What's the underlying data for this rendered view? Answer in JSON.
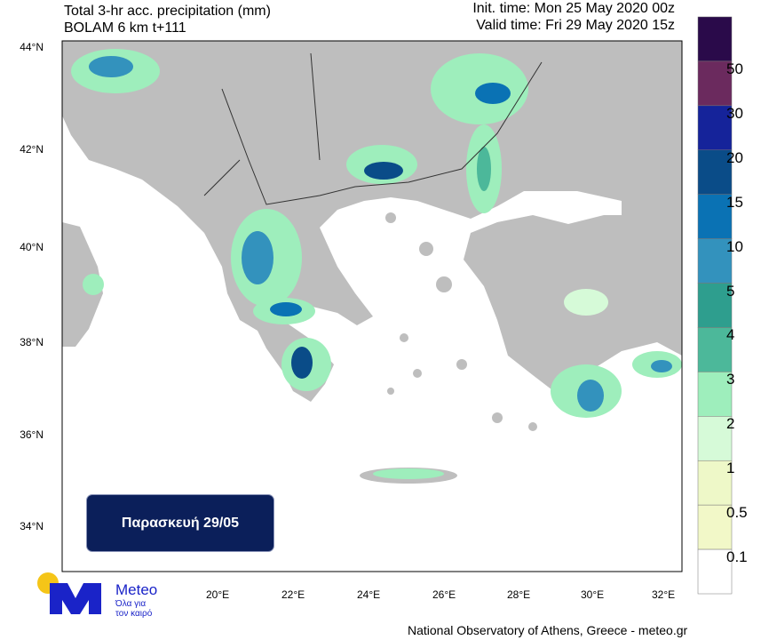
{
  "header": {
    "title_line1": "Total 3-hr acc. precipitation (mm)",
    "title_line2": "BOLAM 6 km t+111",
    "init_time": "Init. time: Mon 25 May 2020 00z",
    "valid_time": "Valid time: Fri 29 May 2020 15z"
  },
  "map": {
    "lat_ticks": [
      "44°N",
      "42°N",
      "40°N",
      "38°N",
      "36°N",
      "34°N"
    ],
    "lon_ticks": [
      "20°E",
      "22°E",
      "24°E",
      "26°E",
      "28°E",
      "30°E",
      "32°E"
    ],
    "land_color": "#bebebe",
    "sea_color": "#ffffff"
  },
  "day_label": "Παρασκευή 29/05",
  "colorbar": {
    "labels": [
      "50",
      "30",
      "20",
      "15",
      "10",
      "5",
      "4",
      "3",
      "2",
      "1",
      "0.5",
      "0.1"
    ],
    "colors": [
      "#2a0a4a",
      "#6b2a5e",
      "#15239a",
      "#0a4c88",
      "#0a72b4",
      "#3392bd",
      "#2e9e8e",
      "#4cb89a",
      "#9eeebc",
      "#d6fad8",
      "#eef8c8",
      "#f2f8c8",
      "#ffffff"
    ]
  },
  "logo": {
    "name": "Meteo",
    "tagline1": "Όλα για",
    "tagline2": "τον καιρό",
    "accent": "#1a23c8",
    "sun": "#f5c518"
  },
  "footer": "National Observatory of Athens, Greece - meteo.gr"
}
